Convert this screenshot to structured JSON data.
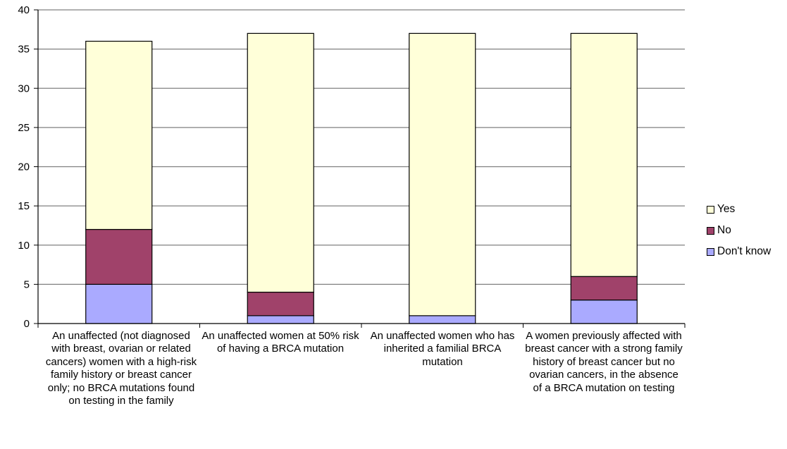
{
  "chart_data": {
    "type": "bar",
    "stacked": true,
    "categories": [
      "An unaffected (not diagnosed with breast, ovarian or related cancers) women with a high-risk family history or breast cancer only; no BRCA mutations found on testing in the family",
      "An unaffected women at 50% risk of having a BRCA mutation",
      "An unaffected women who has inherited a familial BRCA mutation",
      "A women previously affected with breast cancer with a strong family history of breast cancer but no ovarian cancers, in the absence of a BRCA mutation on testing"
    ],
    "series": [
      {
        "name": "Don't know",
        "values": [
          5,
          1,
          1,
          3
        ],
        "color": "#aaaaff"
      },
      {
        "name": "No",
        "values": [
          7,
          3,
          0,
          3
        ],
        "color": "#a0426a"
      },
      {
        "name": "Yes",
        "values": [
          24,
          33,
          36,
          31
        ],
        "color": "#ffffd9"
      }
    ],
    "legend_order": [
      "Yes",
      "No",
      "Don't know"
    ],
    "legend_position": "right",
    "ylim": [
      0,
      40
    ],
    "yticks": [
      0,
      5,
      10,
      15,
      20,
      25,
      30,
      35,
      40
    ],
    "grid": true,
    "title": "",
    "xlabel": "",
    "ylabel": ""
  }
}
